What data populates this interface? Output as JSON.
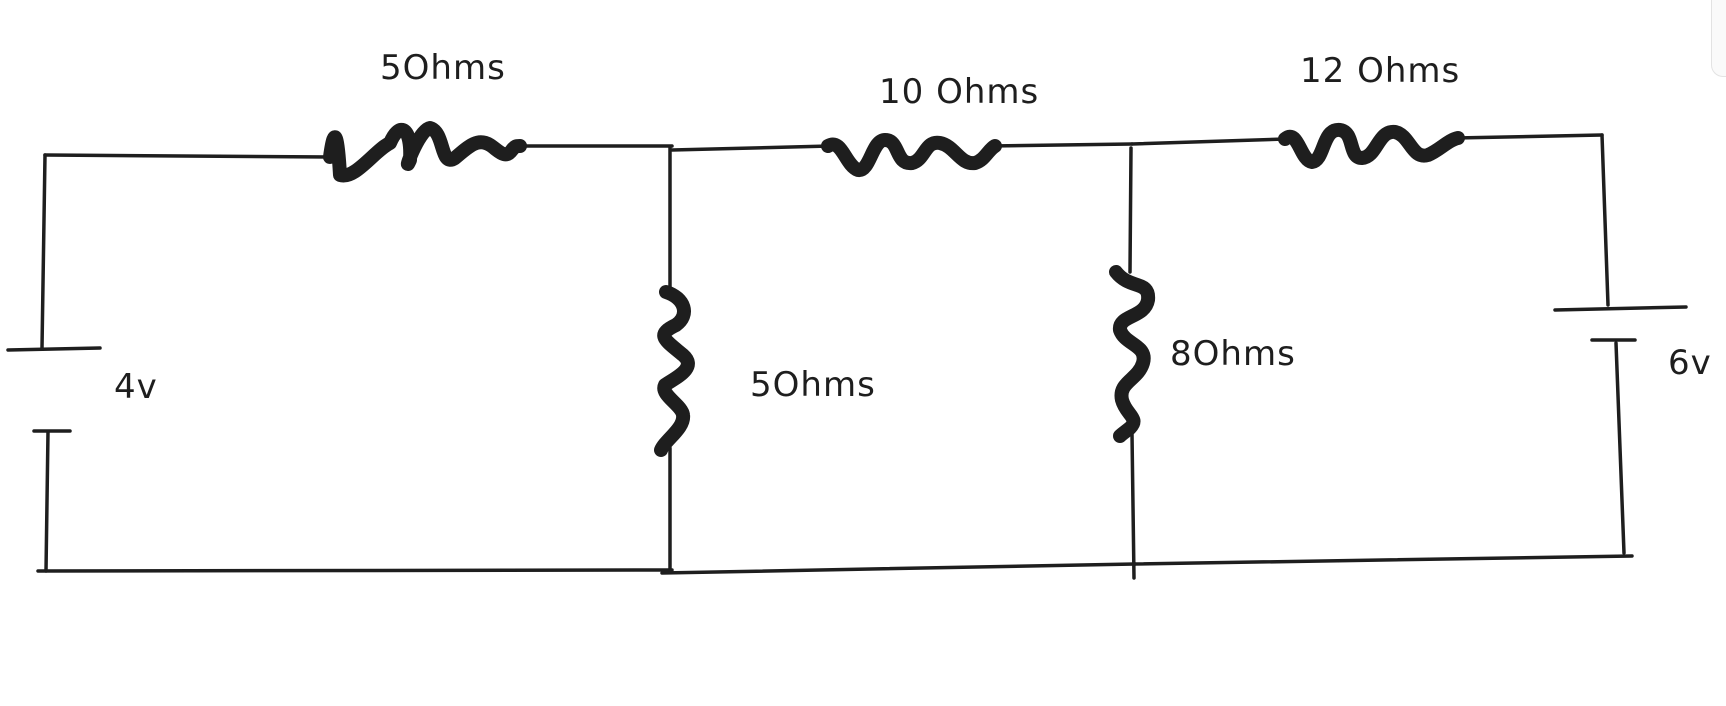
{
  "diagram": {
    "labels": {
      "r_top_left": "5Ohms",
      "r_top_mid": "10 Ohms",
      "r_top_right": "12 Ohms",
      "r_vert_left": "5Ohms",
      "r_vert_right": "8Ohms",
      "source_left": "4v",
      "source_right": "6v"
    }
  }
}
